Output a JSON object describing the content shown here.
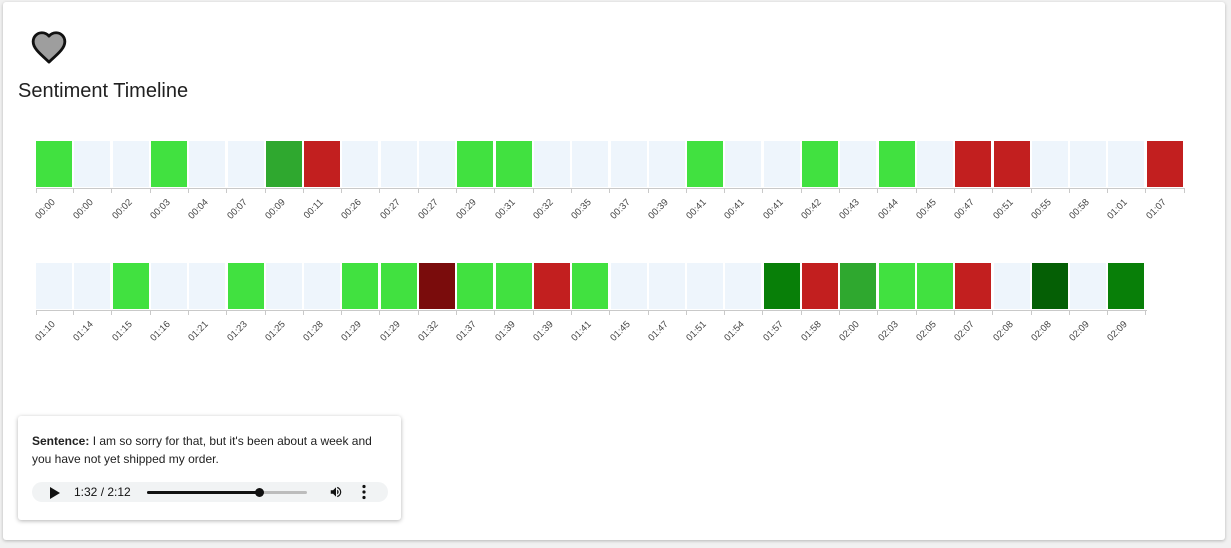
{
  "page": {
    "title": "Sentiment Timeline",
    "icon": "heart-icon"
  },
  "colors": {
    "positive": "#41e140",
    "strong_positive": "#2fa82f",
    "very_positive": "#087f08",
    "extreme_positive": "#055f05",
    "negative": "#c21f1f",
    "extreme_negative": "#7a0c0c",
    "neutral": "#eef5fc"
  },
  "timeline": {
    "rows": [
      [
        {
          "t": "00:00",
          "s": "positive"
        },
        {
          "t": "00:00",
          "s": "neutral"
        },
        {
          "t": "00:02",
          "s": "neutral"
        },
        {
          "t": "00:03",
          "s": "positive"
        },
        {
          "t": "00:04",
          "s": "neutral"
        },
        {
          "t": "00:07",
          "s": "neutral"
        },
        {
          "t": "00:09",
          "s": "strong_positive"
        },
        {
          "t": "00:11",
          "s": "negative"
        },
        {
          "t": "00:26",
          "s": "neutral"
        },
        {
          "t": "00:27",
          "s": "neutral"
        },
        {
          "t": "00:27",
          "s": "neutral"
        },
        {
          "t": "00:29",
          "s": "positive"
        },
        {
          "t": "00:31",
          "s": "positive"
        },
        {
          "t": "00:32",
          "s": "neutral"
        },
        {
          "t": "00:35",
          "s": "neutral"
        },
        {
          "t": "00:37",
          "s": "neutral"
        },
        {
          "t": "00:39",
          "s": "neutral"
        },
        {
          "t": "00:41",
          "s": "positive"
        },
        {
          "t": "00:41",
          "s": "neutral"
        },
        {
          "t": "00:41",
          "s": "neutral"
        },
        {
          "t": "00:42",
          "s": "positive"
        },
        {
          "t": "00:43",
          "s": "neutral"
        },
        {
          "t": "00:44",
          "s": "positive"
        },
        {
          "t": "00:45",
          "s": "neutral"
        },
        {
          "t": "00:47",
          "s": "negative"
        },
        {
          "t": "00:51",
          "s": "negative"
        },
        {
          "t": "00:55",
          "s": "neutral"
        },
        {
          "t": "00:58",
          "s": "neutral"
        },
        {
          "t": "01:01",
          "s": "neutral"
        },
        {
          "t": "01:07",
          "s": "negative"
        }
      ],
      [
        {
          "t": "01:10",
          "s": "neutral"
        },
        {
          "t": "01:14",
          "s": "neutral"
        },
        {
          "t": "01:15",
          "s": "positive"
        },
        {
          "t": "01:16",
          "s": "neutral"
        },
        {
          "t": "01:21",
          "s": "neutral"
        },
        {
          "t": "01:23",
          "s": "positive"
        },
        {
          "t": "01:25",
          "s": "neutral"
        },
        {
          "t": "01:28",
          "s": "neutral"
        },
        {
          "t": "01:29",
          "s": "positive"
        },
        {
          "t": "01:29",
          "s": "positive"
        },
        {
          "t": "01:32",
          "s": "extreme_negative"
        },
        {
          "t": "01:37",
          "s": "positive"
        },
        {
          "t": "01:39",
          "s": "positive"
        },
        {
          "t": "01:39",
          "s": "negative"
        },
        {
          "t": "01:41",
          "s": "positive"
        },
        {
          "t": "01:45",
          "s": "neutral"
        },
        {
          "t": "01:47",
          "s": "neutral"
        },
        {
          "t": "01:51",
          "s": "neutral"
        },
        {
          "t": "01:54",
          "s": "neutral"
        },
        {
          "t": "01:57",
          "s": "very_positive"
        },
        {
          "t": "01:58",
          "s": "negative"
        },
        {
          "t": "02:00",
          "s": "strong_positive"
        },
        {
          "t": "02:03",
          "s": "positive"
        },
        {
          "t": "02:05",
          "s": "positive"
        },
        {
          "t": "02:07",
          "s": "negative"
        },
        {
          "t": "02:08",
          "s": "neutral"
        },
        {
          "t": "02:08",
          "s": "extreme_positive"
        },
        {
          "t": "02:09",
          "s": "neutral"
        },
        {
          "t": "02:09",
          "s": "very_positive"
        }
      ]
    ]
  },
  "sentence_panel": {
    "label": "Sentence:",
    "text": "I am so sorry for that, but it's been about a week and you have not yet shipped my order.",
    "player": {
      "time_display": "1:32 / 2:12",
      "progress": 0.697,
      "play_icon": "play-icon",
      "volume_icon": "volume-icon",
      "menu_icon": "more-vert-icon"
    }
  }
}
